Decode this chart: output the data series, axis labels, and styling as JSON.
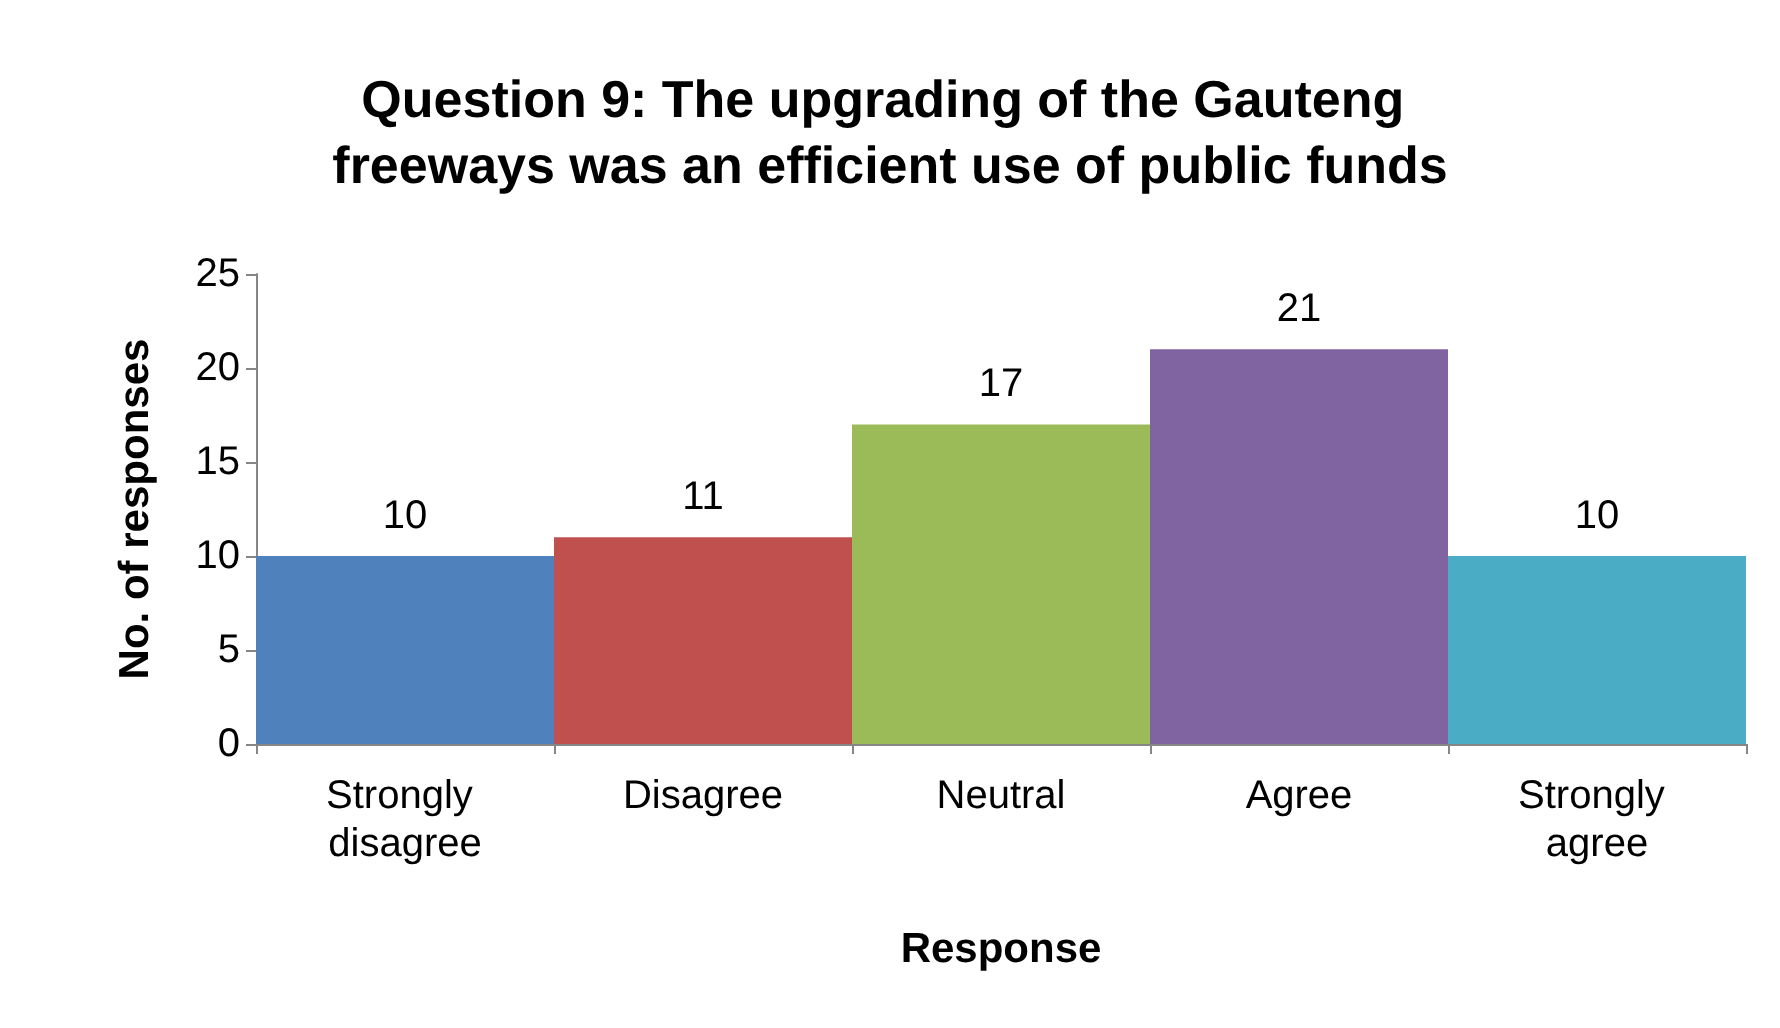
{
  "chart_data": {
    "type": "bar",
    "title": "Question 9: The upgrading of the Gauteng freeways was an efficient use of public funds",
    "xlabel": "Response",
    "ylabel": "No. of responses",
    "categories": [
      "Strongly disagree",
      "Disagree",
      "Neutral",
      "Agree",
      "Strongly agree"
    ],
    "values": [
      10,
      11,
      17,
      21,
      10
    ],
    "colors": [
      "#4f81bd",
      "#c0504d",
      "#9bbb59",
      "#8064a2",
      "#4bacc6"
    ],
    "ylim": [
      0,
      25
    ],
    "yticks": [
      0,
      5,
      10,
      15,
      20,
      25
    ],
    "data_labels": true
  }
}
